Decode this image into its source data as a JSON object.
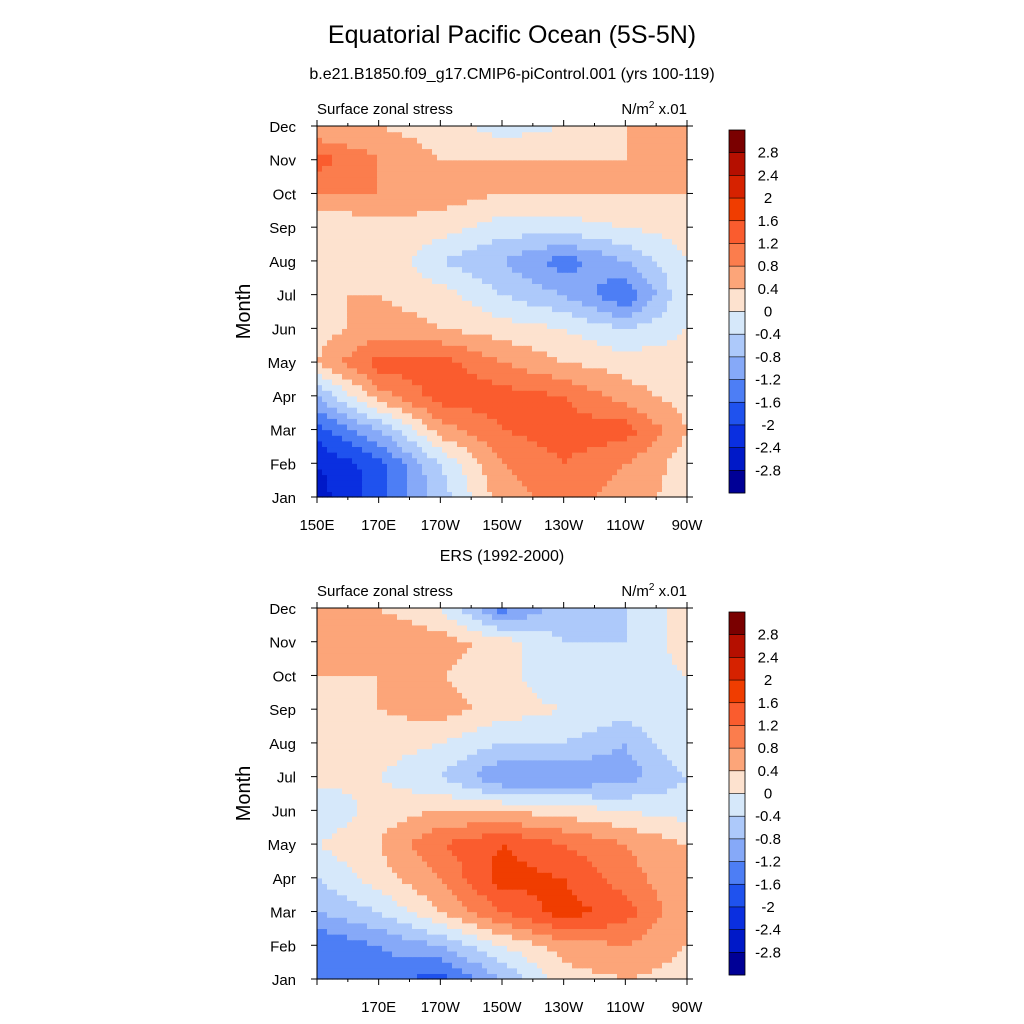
{
  "title": "Equatorial Pacific Ocean (5S-5N)",
  "subtitle": "b.e21.B1850.f09_g17.CMIP6-piControl.001 (yrs 100-119)",
  "second_panel_title": "ERS (1992-2000)",
  "chart_data": [
    {
      "type": "heatmap",
      "subtitle": "b.e21.B1850.f09_g17.CMIP6-piControl.001 (yrs 100-119)",
      "left_label": "Surface zonal stress",
      "right_label_base": "N/m",
      "right_label_exp": "2",
      "right_label_tail": " x.01",
      "ylabel": "Month",
      "xlabel": "",
      "x_ticks": [
        "150E",
        "170E",
        "170W",
        "150W",
        "130W",
        "110W",
        "90W"
      ],
      "y_ticks": [
        "Jan",
        "Feb",
        "Mar",
        "Apr",
        "May",
        "Jun",
        "Jul",
        "Aug",
        "Sep",
        "Oct",
        "Nov",
        "Dec"
      ],
      "x": [
        150,
        170,
        190,
        210,
        230,
        250,
        270
      ],
      "x_range": [
        150,
        270
      ],
      "colorbar_levels": [
        2.8,
        2.4,
        2,
        1.6,
        1.2,
        0.8,
        0.4,
        0,
        -0.4,
        -0.8,
        -1.2,
        -1.6,
        -2,
        -2.4,
        -2.8
      ],
      "values": [
        [
          -2.6,
          -1.8,
          -0.6,
          0.6,
          1.0,
          0.6,
          0.2
        ],
        [
          -2.4,
          -1.8,
          -0.4,
          0.8,
          1.2,
          0.8,
          0.2
        ],
        [
          -1.8,
          -0.8,
          0.6,
          1.2,
          1.4,
          1.4,
          0.4
        ],
        [
          -0.8,
          0.6,
          1.4,
          1.4,
          1.2,
          0.6,
          0.2
        ],
        [
          0.4,
          1.4,
          1.4,
          0.8,
          0.4,
          0.2,
          0.2
        ],
        [
          0.2,
          0.6,
          0.4,
          0.2,
          0.0,
          -0.4,
          0.0
        ],
        [
          0.4,
          0.4,
          0.2,
          -0.4,
          -0.8,
          -1.6,
          0.0
        ],
        [
          0.2,
          0.4,
          -0.4,
          -0.8,
          -1.4,
          -0.8,
          0.0
        ],
        [
          0.0,
          0.2,
          0.2,
          -0.2,
          -0.2,
          0.0,
          0.2
        ],
        [
          0.8,
          0.8,
          0.6,
          0.4,
          0.4,
          0.4,
          0.4
        ],
        [
          1.4,
          0.8,
          0.4,
          0.4,
          0.4,
          0.4,
          0.6
        ],
        [
          0.4,
          0.4,
          0.2,
          -0.2,
          0.0,
          0.4,
          0.6
        ]
      ]
    },
    {
      "type": "heatmap",
      "subtitle": "ERS (1992-2000)",
      "left_label": "Surface zonal stress",
      "right_label_base": "N/m",
      "right_label_exp": "2",
      "right_label_tail": " x.01",
      "ylabel": "Month",
      "xlabel": "",
      "x_ticks": [
        "",
        "170E",
        "170W",
        "150W",
        "130W",
        "110W",
        "90W"
      ],
      "y_ticks": [
        "Jan",
        "Feb",
        "Mar",
        "Apr",
        "May",
        "Jun",
        "Jul",
        "Aug",
        "Sep",
        "Oct",
        "Nov",
        "Dec"
      ],
      "x": [
        150,
        170,
        190,
        210,
        230,
        250,
        270
      ],
      "x_range": [
        150,
        270
      ],
      "colorbar_levels": [
        2.8,
        2.4,
        2,
        1.6,
        1.2,
        0.8,
        0.4,
        0,
        -0.4,
        -0.8,
        -1.2,
        -1.6,
        -2,
        -2.4,
        -2.8
      ],
      "values": [
        [
          -1.2,
          -1.4,
          -1.8,
          -0.8,
          0.2,
          0.4,
          0.2
        ],
        [
          -1.6,
          -1.2,
          -0.8,
          0.0,
          0.6,
          0.8,
          0.4
        ],
        [
          -0.8,
          -0.4,
          0.4,
          1.2,
          1.8,
          1.4,
          0.4
        ],
        [
          -0.4,
          0.2,
          0.8,
          1.8,
          1.6,
          1.0,
          0.4
        ],
        [
          0.0,
          0.4,
          1.2,
          1.6,
          1.2,
          0.8,
          0.4
        ],
        [
          -0.4,
          0.2,
          0.4,
          0.4,
          0.2,
          0.0,
          -0.2
        ],
        [
          0.2,
          0.0,
          -0.4,
          -1.2,
          -1.2,
          -1.0,
          -0.4
        ],
        [
          0.2,
          0.2,
          0.0,
          -0.4,
          -0.4,
          -0.8,
          0.0
        ],
        [
          0.2,
          0.4,
          0.6,
          0.2,
          0.0,
          -0.2,
          0.0
        ],
        [
          0.4,
          0.4,
          0.4,
          0.2,
          -0.4,
          -0.2,
          0.0
        ],
        [
          0.4,
          0.8,
          0.6,
          0.2,
          -0.4,
          -0.4,
          0.2
        ],
        [
          0.4,
          0.4,
          0.0,
          -1.4,
          -0.6,
          -0.4,
          0.2
        ]
      ]
    }
  ],
  "colorbar_colors": {
    "2.8+": "#7a0000",
    "2.4": "#b50f00",
    "2.0": "#d62200",
    "1.6": "#f03d00",
    "1.2": "#fa5c2e",
    "0.8": "#fb7d4d",
    "0.4": "#fca579",
    "0.0": "#fde2cf",
    "-0.4": "#d6e8fa",
    "-0.8": "#adc9fa",
    "-1.2": "#86a9f8",
    "-1.6": "#4d7ef5",
    "-2.0": "#1f52ee",
    "-2.4": "#0a2fe0",
    "-2.8": "#0019c8",
    "-2.8-": "#000096"
  }
}
